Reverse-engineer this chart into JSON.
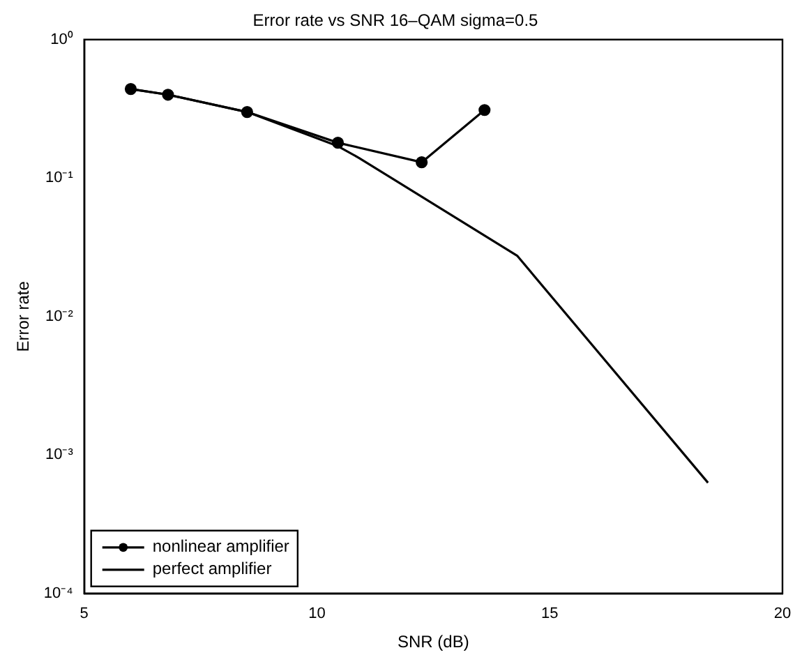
{
  "chart_data": {
    "type": "line",
    "title": "Error rate vs SNR 16–QAM sigma=0.5",
    "xlabel": "SNR (dB)",
    "ylabel": "Error rate",
    "log": "y",
    "grid": false,
    "legend": "bottom left",
    "line_style": "solid",
    "xlim": [
      5,
      20
    ],
    "xticks": [
      5,
      10,
      15,
      20
    ],
    "ylim": [
      0.0001,
      1
    ],
    "yticks": [
      {
        "value": 0.0001,
        "label": "10⁻⁴"
      },
      {
        "value": 0.001,
        "label": "10⁻³"
      },
      {
        "value": 0.01,
        "label": "10⁻²"
      },
      {
        "value": 0.1,
        "label": "10⁻¹"
      },
      {
        "value": 1,
        "label": "10⁰"
      }
    ],
    "series": [
      {
        "name": "nonlinear amplifier",
        "color": "#000000",
        "marker": "circle",
        "x": [
          6,
          6.8,
          8.5,
          10.45,
          12.25,
          13.6
        ],
        "values": [
          0.44,
          0.4,
          0.3,
          0.18,
          0.13,
          0.31
        ]
      },
      {
        "name": "perfect amplifier",
        "color": "#000000",
        "marker": "none",
        "x": [
          6,
          6.8,
          8.5,
          10.45,
          10.9,
          14.3,
          18.4
        ],
        "values": [
          0.44,
          0.4,
          0.3,
          0.17,
          0.14,
          0.0275,
          0.00063
        ]
      }
    ]
  }
}
